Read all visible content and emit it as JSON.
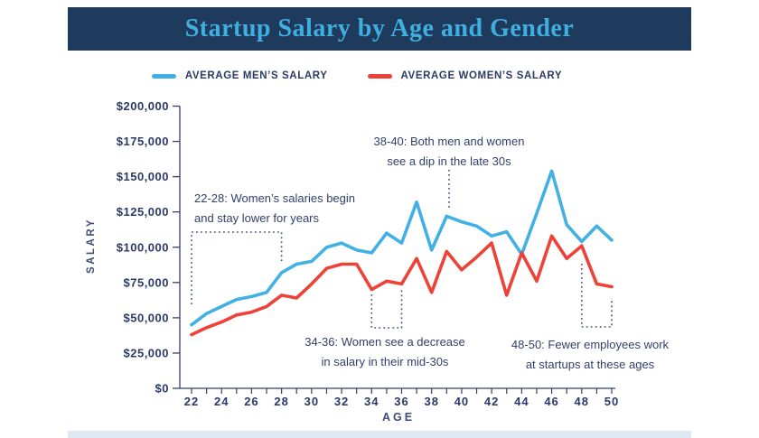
{
  "header": {
    "title": "Startup Salary by Age and Gender",
    "band_color": "#1e3a5c",
    "title_color": "#41aee0"
  },
  "legend": [
    {
      "label": "AVERAGE MEN’S SALARY",
      "color": "#41b0e4"
    },
    {
      "label": "AVERAGE WOMEN’S SALARY",
      "color": "#ee4137"
    }
  ],
  "chart_data": {
    "type": "line",
    "title": "Startup Salary by Age and Gender",
    "xlabel": "AGE",
    "ylabel": "SALARY",
    "x": [
      22,
      23,
      24,
      25,
      26,
      27,
      28,
      29,
      30,
      31,
      32,
      33,
      34,
      35,
      36,
      37,
      38,
      39,
      40,
      41,
      42,
      43,
      44,
      45,
      46,
      47,
      48,
      49,
      50
    ],
    "series": [
      {
        "name": "Average Men's Salary",
        "color": "#41b0e4",
        "values": [
          45000,
          53000,
          58000,
          63000,
          65000,
          68000,
          82000,
          88000,
          90000,
          100000,
          103000,
          98000,
          96000,
          110000,
          103000,
          132000,
          98000,
          122000,
          118000,
          115000,
          108000,
          111000,
          95000,
          124000,
          154000,
          116000,
          104000,
          115000,
          105000
        ]
      },
      {
        "name": "Average Women's Salary",
        "color": "#ee4137",
        "values": [
          38000,
          43000,
          47000,
          52000,
          54000,
          58000,
          66000,
          64000,
          74000,
          85000,
          88000,
          88000,
          70000,
          76000,
          74000,
          92000,
          68000,
          97000,
          84000,
          93000,
          103000,
          66000,
          96000,
          76000,
          108000,
          92000,
          101000,
          74000,
          72000
        ]
      }
    ],
    "ylim": [
      0,
      200000
    ],
    "ytick_step": 25000,
    "ytick_labels": [
      "$0",
      "$25,000",
      "$50,000",
      "$75,000",
      "$100,000",
      "$125,000",
      "$150,000",
      "$175,000",
      "$200,000"
    ],
    "xtick_labels": [
      "22",
      "24",
      "26",
      "28",
      "30",
      "32",
      "34",
      "36",
      "38",
      "40",
      "42",
      "44",
      "46",
      "48",
      "50"
    ],
    "grid": false,
    "legend_position": "top",
    "annotations": [
      {
        "id": "22-28",
        "line1": "22-28: Women’s salaries begin",
        "line2": "and stay lower for years"
      },
      {
        "id": "38-40",
        "line1": "38-40: Both men and women",
        "line2": "see a dip in the late 30s"
      },
      {
        "id": "34-36",
        "line1": "34-36: Women see a decrease",
        "line2": "in salary in their mid-30s"
      },
      {
        "id": "48-50",
        "line1": "48-50: Fewer employees work",
        "line2": "at startups at these ages"
      }
    ]
  }
}
